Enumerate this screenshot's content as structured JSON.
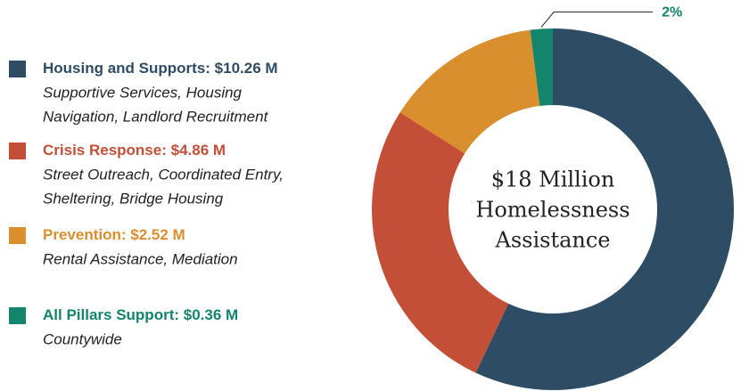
{
  "chart_data": {
    "type": "donut",
    "categories": [
      "Housing and Supports:",
      "Crisis Response:",
      "Prevention:",
      "All Pillars Support:"
    ],
    "values": [
      10.26,
      4.86,
      2.52,
      0.36
    ],
    "value_labels": [
      "$10.26 M",
      "$4.86 M",
      "$2.52 M",
      "$0.36 M"
    ],
    "descriptions": [
      [
        "Supportive Services, Housing",
        "Navigation, Landlord Recruitment"
      ],
      [
        "Street Outreach, Coordinated Entry,",
        "Sheltering, Bridge Housing"
      ],
      [
        "Rental Assistance, Mediation"
      ],
      [
        "Countywide"
      ]
    ],
    "colors": [
      "#2e4d65",
      "#c24f36",
      "#d98f2d",
      "#13856b"
    ],
    "center_text": [
      "$18 Million",
      "Homelessness",
      "Assistance"
    ],
    "annotations": [
      {
        "text": "2%",
        "slice": 3
      }
    ]
  }
}
